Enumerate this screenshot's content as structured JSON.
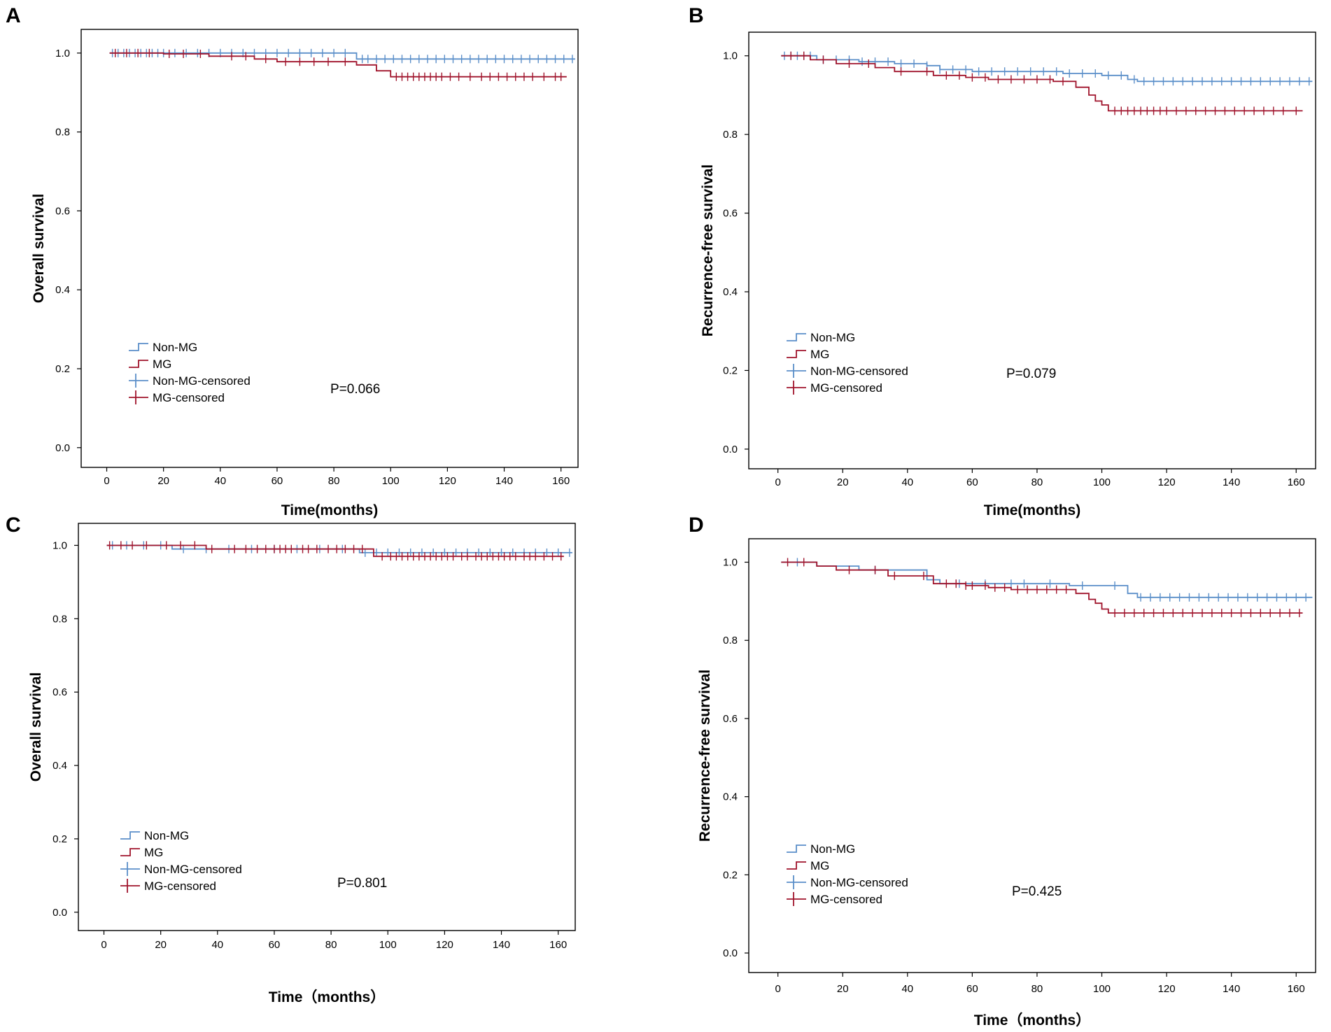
{
  "colors": {
    "non_mg": "#5b8fc9",
    "mg": "#a0142c"
  },
  "chart_data": [
    {
      "type": "line",
      "panel": "A",
      "xlabel": "Time(months)",
      "ylabel": "Overall survival",
      "xlim": [
        -9,
        166
      ],
      "ylim": [
        -0.05,
        1.06
      ],
      "xticks": [
        "0",
        "20",
        "40",
        "60",
        "80",
        "100",
        "120",
        "140",
        "160"
      ],
      "yticks": [
        "0.0",
        "0.2",
        "0.4",
        "0.6",
        "0.8",
        "1.0"
      ],
      "legend": [
        "Non-MG",
        "MG",
        "Non-MG-censored",
        "MG-censored"
      ],
      "p_value": "P=0.066",
      "series": [
        {
          "name": "Non-MG",
          "step_x": [
            1,
            88,
            165
          ],
          "step_y": [
            1.0,
            0.985,
            0.985
          ],
          "censored_x": [
            2,
            4,
            6,
            8,
            10,
            12,
            14,
            16,
            18,
            20,
            24,
            28,
            32,
            36,
            40,
            44,
            48,
            52,
            56,
            60,
            64,
            68,
            72,
            76,
            80,
            84,
            90,
            92,
            95,
            98,
            101,
            104,
            107,
            110,
            113,
            116,
            119,
            122,
            125,
            128,
            131,
            134,
            137,
            140,
            143,
            146,
            149,
            152,
            155,
            158,
            161,
            164
          ]
        },
        {
          "name": "MG",
          "step_x": [
            1,
            20,
            36,
            52,
            60,
            88,
            95,
            100,
            162
          ],
          "step_y": [
            1.0,
            0.998,
            0.992,
            0.985,
            0.978,
            0.97,
            0.955,
            0.94,
            0.94
          ],
          "censored_x": [
            3,
            7,
            11,
            15,
            22,
            27,
            33,
            44,
            49,
            56,
            63,
            68,
            73,
            78,
            84,
            102,
            104,
            106,
            108,
            110,
            112,
            114,
            116,
            118,
            121,
            124,
            128,
            132,
            135,
            138,
            141,
            144,
            147,
            150,
            154,
            158,
            160
          ]
        }
      ]
    },
    {
      "type": "line",
      "panel": "B",
      "xlabel": "Time(months)",
      "ylabel": "Recurrence-free survival",
      "xlim": [
        -9,
        166
      ],
      "ylim": [
        -0.05,
        1.06
      ],
      "xticks": [
        "0",
        "20",
        "40",
        "60",
        "80",
        "100",
        "120",
        "140",
        "160"
      ],
      "yticks": [
        "0.0",
        "0.2",
        "0.4",
        "0.6",
        "0.8",
        "1.0"
      ],
      "legend": [
        "Non-MG",
        "MG",
        "Non-MG-censored",
        "MG-censored"
      ],
      "p_value": "P=0.079",
      "series": [
        {
          "name": "Non-MG",
          "step_x": [
            1,
            12,
            25,
            36,
            46,
            50,
            60,
            75,
            88,
            100,
            108,
            111,
            165
          ],
          "step_y": [
            1.0,
            0.99,
            0.985,
            0.98,
            0.975,
            0.965,
            0.96,
            0.96,
            0.955,
            0.95,
            0.94,
            0.935,
            0.935
          ],
          "censored_x": [
            2,
            4,
            6,
            8,
            10,
            14,
            18,
            22,
            26,
            30,
            34,
            38,
            42,
            46,
            50,
            54,
            58,
            62,
            66,
            70,
            74,
            78,
            82,
            86,
            90,
            94,
            98,
            102,
            106,
            110,
            113,
            116,
            119,
            122,
            125,
            128,
            131,
            134,
            137,
            140,
            143,
            146,
            149,
            152,
            155,
            158,
            161,
            164
          ]
        },
        {
          "name": "MG",
          "step_x": [
            1,
            10,
            18,
            30,
            36,
            48,
            58,
            65,
            85,
            92,
            96,
            98,
            100,
            102,
            162
          ],
          "step_y": [
            1.0,
            0.99,
            0.98,
            0.97,
            0.96,
            0.95,
            0.945,
            0.94,
            0.935,
            0.92,
            0.9,
            0.885,
            0.875,
            0.86,
            0.86
          ],
          "censored_x": [
            4,
            8,
            14,
            22,
            28,
            38,
            46,
            52,
            56,
            60,
            64,
            68,
            72,
            76,
            80,
            84,
            88,
            104,
            106,
            108,
            110,
            112,
            114,
            116,
            118,
            120,
            123,
            126,
            129,
            132,
            135,
            138,
            141,
            144,
            147,
            150,
            153,
            156,
            160
          ]
        }
      ]
    },
    {
      "type": "line",
      "panel": "C",
      "xlabel": "Time（months）",
      "ylabel": "Overall survival",
      "xlim": [
        -9,
        166
      ],
      "ylim": [
        -0.05,
        1.06
      ],
      "xticks": [
        "0",
        "20",
        "40",
        "60",
        "80",
        "100",
        "120",
        "140",
        "160"
      ],
      "yticks": [
        "0.0",
        "0.2",
        "0.4",
        "0.6",
        "0.8",
        "1.0"
      ],
      "legend": [
        "Non-MG",
        "MG",
        "Non-MG-censored",
        "MG-censored"
      ],
      "p_value": "P=0.801",
      "series": [
        {
          "name": "Non-MG",
          "step_x": [
            1,
            24,
            90,
            165
          ],
          "step_y": [
            1.0,
            0.99,
            0.98,
            0.98
          ],
          "censored_x": [
            3,
            8,
            14,
            20,
            28,
            36,
            44,
            52,
            60,
            68,
            76,
            84,
            92,
            96,
            100,
            104,
            108,
            112,
            116,
            120,
            124,
            128,
            132,
            136,
            140,
            144,
            148,
            152,
            156,
            160,
            164
          ]
        },
        {
          "name": "MG",
          "step_x": [
            1,
            36,
            95,
            162
          ],
          "step_y": [
            1.0,
            0.99,
            0.97,
            0.97
          ],
          "censored_x": [
            2,
            6,
            10,
            15,
            22,
            27,
            32,
            38,
            46,
            50,
            54,
            57,
            60,
            62,
            64,
            66,
            70,
            72,
            75,
            79,
            82,
            85,
            88,
            91,
            98,
            101,
            103,
            105,
            107,
            109,
            111,
            113,
            115,
            117,
            119,
            121,
            123,
            126,
            128,
            131,
            133,
            135,
            137,
            139,
            141,
            143,
            145,
            148,
            150,
            152,
            155,
            158,
            161
          ]
        }
      ]
    },
    {
      "type": "line",
      "panel": "D",
      "xlabel": "Time（months）",
      "ylabel": "Recurrence-free survival",
      "xlim": [
        -9,
        166
      ],
      "ylim": [
        -0.05,
        1.06
      ],
      "xticks": [
        "0",
        "20",
        "40",
        "60",
        "80",
        "100",
        "120",
        "140",
        "160"
      ],
      "yticks": [
        "0.0",
        "0.2",
        "0.4",
        "0.6",
        "0.8",
        "1.0"
      ],
      "legend": [
        "Non-MG",
        "MG",
        "Non-MG-censored",
        "MG-censored"
      ],
      "p_value": "P=0.425",
      "series": [
        {
          "name": "Non-MG",
          "step_x": [
            1,
            12,
            25,
            46,
            50,
            65,
            90,
            108,
            111,
            165
          ],
          "step_y": [
            1.0,
            0.99,
            0.98,
            0.955,
            0.945,
            0.945,
            0.94,
            0.92,
            0.91,
            0.91
          ],
          "censored_x": [
            6,
            30,
            56,
            64,
            72,
            76,
            84,
            94,
            104,
            112,
            115,
            118,
            121,
            124,
            127,
            130,
            133,
            136,
            139,
            142,
            145,
            148,
            151,
            154,
            157,
            160,
            163
          ]
        },
        {
          "name": "MG",
          "step_x": [
            1,
            12,
            18,
            34,
            48,
            58,
            65,
            72,
            92,
            96,
            98,
            100,
            102,
            162
          ],
          "step_y": [
            1.0,
            0.99,
            0.98,
            0.965,
            0.945,
            0.94,
            0.935,
            0.93,
            0.92,
            0.905,
            0.895,
            0.88,
            0.87,
            0.87
          ],
          "censored_x": [
            3,
            8,
            22,
            30,
            36,
            45,
            52,
            55,
            58,
            60,
            64,
            67,
            70,
            74,
            77,
            80,
            83,
            86,
            89,
            104,
            107,
            110,
            113,
            116,
            119,
            122,
            125,
            128,
            131,
            134,
            137,
            140,
            143,
            146,
            149,
            152,
            155,
            158,
            161
          ]
        }
      ]
    }
  ]
}
